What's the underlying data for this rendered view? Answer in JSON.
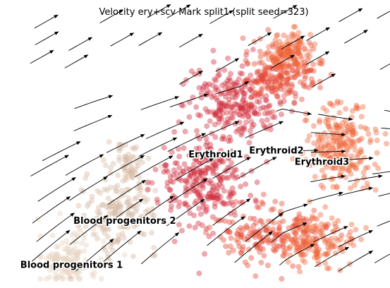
{
  "chart_data": {
    "type": "scatter",
    "title": "Velocity ery+scv Mark split1 (split seed=323)",
    "xlabel": "",
    "ylabel": "",
    "axes_visible": false,
    "grid": false,
    "overlay": "velocity streamlines",
    "colors": {
      "Blood progenitors 1": "#e8d3c2",
      "Blood progenitors 2": "#d6b9a5",
      "Erythroid1": "#d12f3f",
      "Erythroid2": "#e84a33",
      "Erythroid3": "#f06a3b"
    },
    "clusters": [
      {
        "name": "Blood progenitors 1",
        "x": 0.85,
        "y": 0.15
      },
      {
        "name": "Blood progenitors 2",
        "x": 1.55,
        "y": 0.75
      },
      {
        "name": "Erythroid1",
        "x": 2.75,
        "y": 1.65
      },
      {
        "name": "Erythroid2",
        "x": 3.55,
        "y": 1.7
      },
      {
        "name": "Erythroid3",
        "x": 4.15,
        "y": 1.55
      }
    ]
  }
}
